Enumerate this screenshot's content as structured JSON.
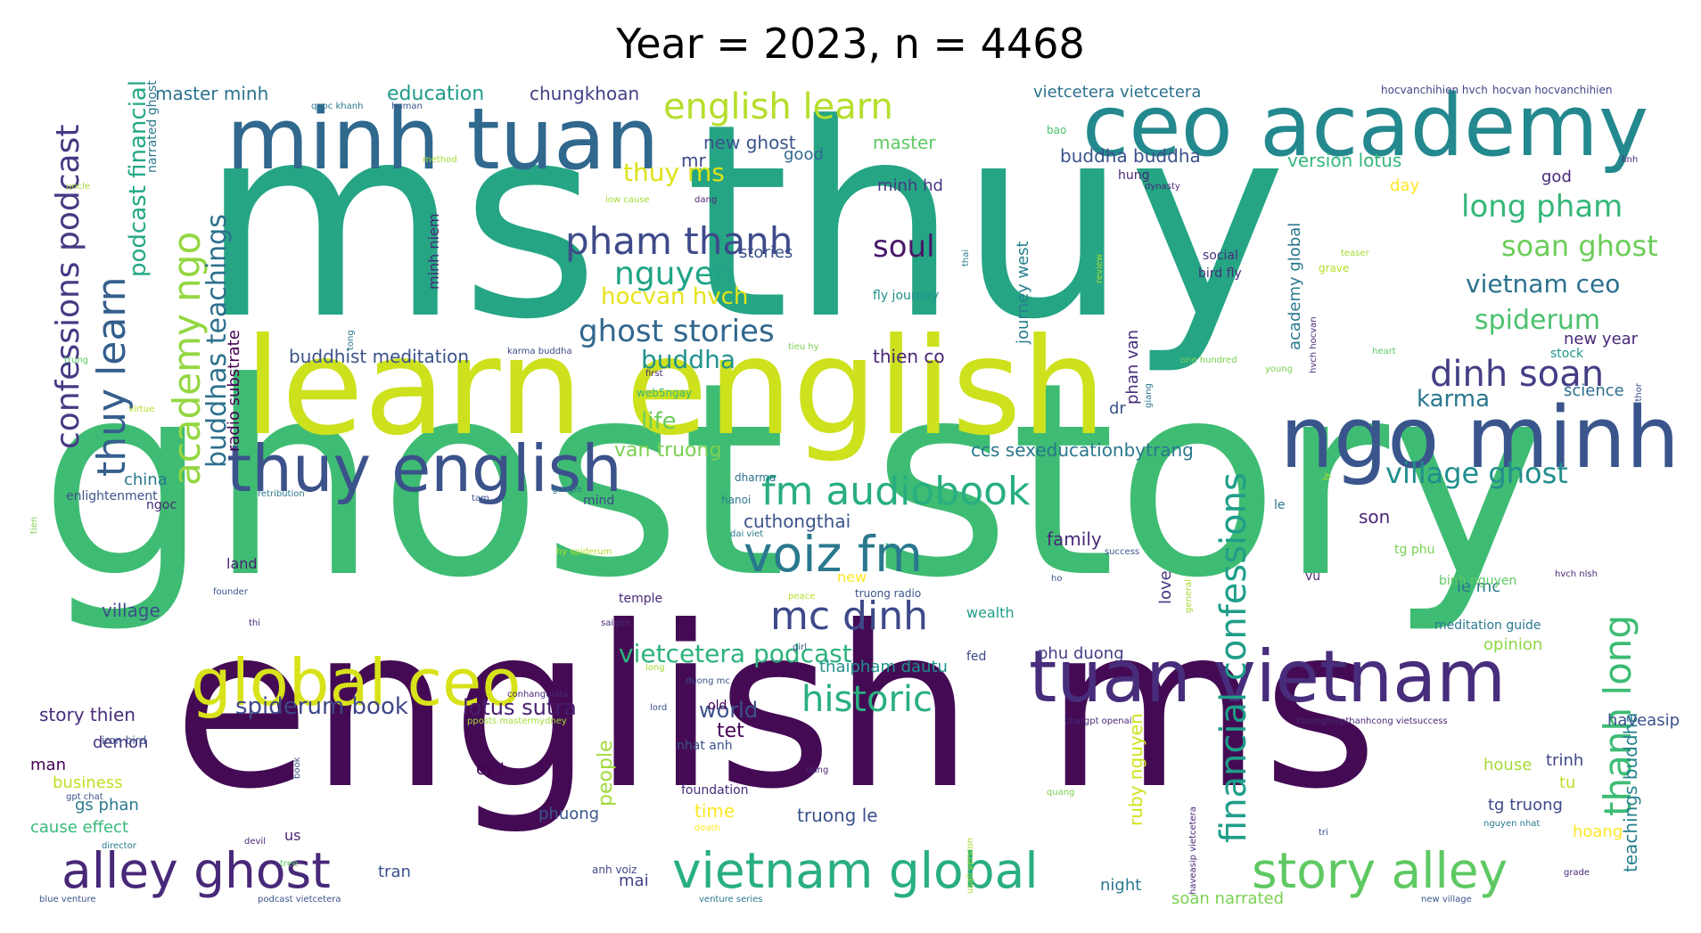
{
  "title": "Year = 2023, n = 4468",
  "words": [
    {
      "text": "ms thuy",
      "size": 300,
      "color": "#25a584"
    },
    {
      "text": "ghost story",
      "size": 300,
      "color": "#3fbc73"
    },
    {
      "text": "english ms",
      "size": 250,
      "color": "#440b54"
    },
    {
      "text": "learn english",
      "size": 150,
      "color": "#cde11d"
    },
    {
      "text": "ceo academy",
      "size": 95,
      "color": "#23898e"
    },
    {
      "text": "minh tuan",
      "size": 95,
      "color": "#30688e"
    },
    {
      "text": "ngo minh",
      "size": 95,
      "color": "#39558c"
    },
    {
      "text": "tuan vietnam",
      "size": 80,
      "color": "#472d7b"
    },
    {
      "text": "thuy english",
      "size": 72,
      "color": "#3b528b"
    },
    {
      "text": "global ceo",
      "size": 72,
      "color": "#d8e219"
    },
    {
      "text": "alley ghost",
      "size": 55,
      "color": "#482878"
    },
    {
      "text": "vietnam global",
      "size": 55,
      "color": "#29af7f"
    },
    {
      "text": "story alley",
      "size": 55,
      "color": "#5ec962"
    },
    {
      "text": "voiz fm",
      "size": 55,
      "color": "#2a788e"
    },
    {
      "text": "mc dinh",
      "size": 44,
      "color": "#3e4989"
    },
    {
      "text": "fm audiobook",
      "size": 44,
      "color": "#28ae80"
    },
    {
      "text": "english learn",
      "size": 40,
      "color": "#b5de2b"
    },
    {
      "text": "pham thanh",
      "size": 42,
      "color": "#3e4a89"
    },
    {
      "text": "historic",
      "size": 40,
      "color": "#2ab07f"
    },
    {
      "text": "dinh soan",
      "size": 40,
      "color": "#433e85"
    },
    {
      "text": "thuy learn",
      "size": 44,
      "color": "#355f8d"
    },
    {
      "text": "academy ngo",
      "size": 42,
      "color": "#93d741"
    },
    {
      "text": "financial confessions",
      "size": 40,
      "color": "#1f9e89"
    },
    {
      "text": "thanh long",
      "size": 42,
      "color": "#3dbc74"
    },
    {
      "text": "confessions podcast",
      "size": 36,
      "color": "#443a83"
    },
    {
      "text": "nguyen",
      "size": 36,
      "color": "#20a386"
    },
    {
      "text": "ghost stories",
      "size": 34,
      "color": "#31678e"
    },
    {
      "text": "soul",
      "size": 34,
      "color": "#481769"
    },
    {
      "text": "long pham",
      "size": 34,
      "color": "#35b779"
    },
    {
      "text": "soan ghost",
      "size": 32,
      "color": "#6ccd5a"
    },
    {
      "text": "village ghost",
      "size": 32,
      "color": "#228d8d"
    },
    {
      "text": "vietnam ceo",
      "size": 28,
      "color": "#2c718e"
    },
    {
      "text": "spiderum",
      "size": 30,
      "color": "#4ac16d"
    },
    {
      "text": "buddhas teachings",
      "size": 30,
      "color": "#2d708e"
    },
    {
      "text": "podcast financial",
      "size": 26,
      "color": "#22a884"
    },
    {
      "text": "vietcetera podcast",
      "size": 28,
      "color": "#2db27d"
    },
    {
      "text": "spiderum book",
      "size": 26,
      "color": "#3f4788"
    },
    {
      "text": "buddha",
      "size": 28,
      "color": "#20928c"
    },
    {
      "text": "karma",
      "size": 26,
      "color": "#2a778e"
    },
    {
      "text": "life",
      "size": 26,
      "color": "#6ccd5a"
    },
    {
      "text": "hocvan hvch",
      "size": 26,
      "color": "#e5e419"
    },
    {
      "text": "thuy ms",
      "size": 28,
      "color": "#dde318"
    },
    {
      "text": "ruby nguyen",
      "size": 20,
      "color": "#d0e11c"
    },
    {
      "text": "teachings buddha",
      "size": 20,
      "color": "#26828e"
    },
    {
      "text": "tet",
      "size": 22,
      "color": "#440154"
    },
    {
      "text": "world",
      "size": 24,
      "color": "#3b528b"
    },
    {
      "text": "lotus sutra",
      "size": 24,
      "color": "#481c6e"
    },
    {
      "text": "people",
      "size": 22,
      "color": "#9fda3a"
    },
    {
      "text": "story thien",
      "size": 20,
      "color": "#472c7a"
    },
    {
      "text": "education",
      "size": 22,
      "color": "#1e9b8a"
    },
    {
      "text": "master minh",
      "size": 20,
      "color": "#2c728e"
    },
    {
      "text": "chungkhoan",
      "size": 20,
      "color": "#424086"
    },
    {
      "text": "new ghost",
      "size": 20,
      "color": "#3b528b"
    },
    {
      "text": "master",
      "size": 20,
      "color": "#5ec962"
    },
    {
      "text": "good",
      "size": 18,
      "color": "#31688e"
    },
    {
      "text": "mr",
      "size": 20,
      "color": "#3e4989"
    },
    {
      "text": "version lotus",
      "size": 20,
      "color": "#35b779"
    },
    {
      "text": "buddha buddha",
      "size": 20,
      "color": "#3b528b"
    },
    {
      "text": "vietcetera vietcetera",
      "size": 18,
      "color": "#2c718e"
    },
    {
      "text": "stories",
      "size": 18,
      "color": "#3b528b"
    },
    {
      "text": "minh hd",
      "size": 18,
      "color": "#443983"
    },
    {
      "text": "day",
      "size": 18,
      "color": "#fde725"
    },
    {
      "text": "god",
      "size": 18,
      "color": "#482878"
    },
    {
      "text": "thien co",
      "size": 20,
      "color": "#482576"
    },
    {
      "text": "buddhist meditation",
      "size": 20,
      "color": "#3b528b"
    },
    {
      "text": "radio substrate",
      "size": 18,
      "color": "#440154"
    },
    {
      "text": "journey west",
      "size": 18,
      "color": "#27808e"
    },
    {
      "text": "phan van",
      "size": 18,
      "color": "#472d7b"
    },
    {
      "text": "academy global",
      "size": 18,
      "color": "#29798e"
    },
    {
      "text": "van truong",
      "size": 22,
      "color": "#7ad151"
    },
    {
      "text": "ccs sexeducationbytrang",
      "size": 20,
      "color": "#2a788e"
    },
    {
      "text": "cuthongthai",
      "size": 20,
      "color": "#3b528b"
    },
    {
      "text": "china",
      "size": 18,
      "color": "#2a788e"
    },
    {
      "text": "family",
      "size": 20,
      "color": "#482878"
    },
    {
      "text": "son",
      "size": 20,
      "color": "#482576"
    },
    {
      "text": "le mc",
      "size": 18,
      "color": "#2a788e"
    },
    {
      "text": "opinion",
      "size": 18,
      "color": "#8fd744"
    },
    {
      "text": "science",
      "size": 18,
      "color": "#2e6e8e"
    },
    {
      "text": "new year",
      "size": 18,
      "color": "#482878"
    },
    {
      "text": "stock",
      "size": 14,
      "color": "#1f968b"
    },
    {
      "text": "village",
      "size": 20,
      "color": "#3b528b"
    },
    {
      "text": "land",
      "size": 16,
      "color": "#481f70"
    },
    {
      "text": "thaipham dautu",
      "size": 18,
      "color": "#21918c"
    },
    {
      "text": "phu duong",
      "size": 18,
      "color": "#433e85"
    },
    {
      "text": "wealth",
      "size": 16,
      "color": "#1f9e89"
    },
    {
      "text": "love",
      "size": 18,
      "color": "#46337f"
    },
    {
      "text": "demon",
      "size": 18,
      "color": "#46327e"
    },
    {
      "text": "man",
      "size": 18,
      "color": "#440154"
    },
    {
      "text": "business",
      "size": 18,
      "color": "#c2df23"
    },
    {
      "text": "gs phan",
      "size": 18,
      "color": "#2a788e"
    },
    {
      "text": "cause effect",
      "size": 18,
      "color": "#38b977"
    },
    {
      "text": "us",
      "size": 16,
      "color": "#482475"
    },
    {
      "text": "tran",
      "size": 18,
      "color": "#3b528b"
    },
    {
      "text": "mai",
      "size": 18,
      "color": "#414487"
    },
    {
      "text": "phuong",
      "size": 18,
      "color": "#39568c"
    },
    {
      "text": "time",
      "size": 20,
      "color": "#fde725"
    },
    {
      "text": "truong le",
      "size": 20,
      "color": "#3b528b"
    },
    {
      "text": "foundation",
      "size": 14,
      "color": "#472c7a"
    },
    {
      "text": "night",
      "size": 18,
      "color": "#2a788e"
    },
    {
      "text": "soan narrated",
      "size": 18,
      "color": "#7ad151"
    },
    {
      "text": "haveasip",
      "size": 18,
      "color": "#3b528b"
    },
    {
      "text": "house",
      "size": 18,
      "color": "#a5db36"
    },
    {
      "text": "trinh",
      "size": 18,
      "color": "#404688"
    },
    {
      "text": "tu",
      "size": 18,
      "color": "#bddf26"
    },
    {
      "text": "tg truong",
      "size": 18,
      "color": "#3e4989"
    },
    {
      "text": "hoang",
      "size": 18,
      "color": "#fde725"
    },
    {
      "text": "meditation guide",
      "size": 14,
      "color": "#2a788e"
    },
    {
      "text": "binh nguyen",
      "size": 14,
      "color": "#5ec962"
    },
    {
      "text": "tg phu",
      "size": 14,
      "color": "#7ad151"
    },
    {
      "text": "vu",
      "size": 14,
      "color": "#482878"
    },
    {
      "text": "le",
      "size": 14,
      "color": "#2a788e"
    },
    {
      "text": "dr",
      "size": 18,
      "color": "#3b528b"
    },
    {
      "text": "hung",
      "size": 14,
      "color": "#482878"
    },
    {
      "text": "social",
      "size": 14,
      "color": "#472d7b"
    },
    {
      "text": "bird fly",
      "size": 14,
      "color": "#472d7b"
    },
    {
      "text": "fly journey",
      "size": 14,
      "color": "#21918c"
    },
    {
      "text": "minh niem",
      "size": 16,
      "color": "#482878"
    },
    {
      "text": "narrated ghost",
      "size": 14,
      "color": "#2a788e"
    },
    {
      "text": "bao",
      "size": 12,
      "color": "#4ac16d"
    },
    {
      "text": "mind",
      "size": 14,
      "color": "#3e4989"
    },
    {
      "text": "hanoi",
      "size": 12,
      "color": "#2a788e"
    },
    {
      "text": "dharma",
      "size": 12,
      "color": "#2e6e8e"
    },
    {
      "text": "enlightenment",
      "size": 14,
      "color": "#3b528b"
    },
    {
      "text": "ngoc",
      "size": 14,
      "color": "#482878"
    },
    {
      "text": "temple",
      "size": 14,
      "color": "#482878"
    },
    {
      "text": "evil",
      "size": 18,
      "color": "#440154"
    },
    {
      "text": "old",
      "size": 14,
      "color": "#440154"
    },
    {
      "text": "fed",
      "size": 14,
      "color": "#3e4989"
    },
    {
      "text": "new",
      "size": 16,
      "color": "#fde725"
    },
    {
      "text": "truong radio",
      "size": 12,
      "color": "#3b528b"
    },
    {
      "text": "web5ngay",
      "size": 12,
      "color": "#35b779"
    },
    {
      "text": "nhat anh",
      "size": 14,
      "color": "#3b528b"
    },
    {
      "text": "anh voiz",
      "size": 12,
      "color": "#3e4989"
    },
    {
      "text": "hocvanchihien hvch",
      "size": 12,
      "color": "#404688"
    },
    {
      "text": "hocvan hocvanchihien",
      "size": 12,
      "color": "#404688"
    },
    {
      "text": "quoc khanh",
      "size": 10,
      "color": "#2a788e"
    },
    {
      "text": "human",
      "size": 10,
      "color": "#3b528b"
    },
    {
      "text": "method",
      "size": 10,
      "color": "#a5db36"
    },
    {
      "text": "uncle",
      "size": 10,
      "color": "#a5db36"
    },
    {
      "text": "dang",
      "size": 10,
      "color": "#482878"
    },
    {
      "text": "dynasty",
      "size": 10,
      "color": "#482878"
    },
    {
      "text": "linh",
      "size": 10,
      "color": "#482878"
    },
    {
      "text": "grave",
      "size": 12,
      "color": "#b5de2b"
    },
    {
      "text": "author",
      "size": 10,
      "color": "#3b528b"
    },
    {
      "text": "heart",
      "size": 10,
      "color": "#5ec962"
    },
    {
      "text": "young",
      "size": 10,
      "color": "#7ad151"
    },
    {
      "text": "giang",
      "size": 10,
      "color": "#2a788e"
    },
    {
      "text": "karma buddha",
      "size": 10,
      "color": "#3e4989"
    },
    {
      "text": "tieu hy",
      "size": 10,
      "color": "#7ad151"
    },
    {
      "text": "first",
      "size": 10,
      "color": "#482878"
    },
    {
      "text": "virtue",
      "size": 10,
      "color": "#b5de2b"
    },
    {
      "text": "trung",
      "size": 10,
      "color": "#5ec962"
    },
    {
      "text": "tien",
      "size": 10,
      "color": "#7ad151"
    },
    {
      "text": "google",
      "size": 10,
      "color": "#2a788e"
    },
    {
      "text": "retribution",
      "size": 10,
      "color": "#2a788e"
    },
    {
      "text": "tam",
      "size": 10,
      "color": "#3b528b"
    },
    {
      "text": "dai viet",
      "size": 10,
      "color": "#2a788e"
    },
    {
      "text": "hy spiderum",
      "size": 10,
      "color": "#b5de2b"
    },
    {
      "text": "founder",
      "size": 10,
      "color": "#3b528b"
    },
    {
      "text": "thi",
      "size": 10,
      "color": "#482878"
    },
    {
      "text": "saigon",
      "size": 10,
      "color": "#482878"
    },
    {
      "text": "peace",
      "size": 10,
      "color": "#b5de2b"
    },
    {
      "text": "girl",
      "size": 10,
      "color": "#3b528b"
    },
    {
      "text": "success",
      "size": 10,
      "color": "#3b528b"
    },
    {
      "text": "ho",
      "size": 10,
      "color": "#3b528b"
    },
    {
      "text": "general",
      "size": 10,
      "color": "#a5db36"
    },
    {
      "text": "ly",
      "size": 10,
      "color": "#b5de2b"
    },
    {
      "text": "hvch nlsh",
      "size": 10,
      "color": "#482878"
    },
    {
      "text": "low cause",
      "size": 10,
      "color": "#a5db36"
    },
    {
      "text": "review",
      "size": 10,
      "color": "#a5db36"
    },
    {
      "text": "teaser",
      "size": 10,
      "color": "#a5db36"
    },
    {
      "text": "hvch hocvan",
      "size": 10,
      "color": "#482878"
    },
    {
      "text": "one hundred",
      "size": 10,
      "color": "#7ad151"
    },
    {
      "text": "thai",
      "size": 10,
      "color": "#2a788e"
    },
    {
      "text": "tong",
      "size": 10,
      "color": "#2a788e"
    },
    {
      "text": "conhanguoita",
      "size": 10,
      "color": "#482878"
    },
    {
      "text": "duong mc",
      "size": 10,
      "color": "#3b528b"
    },
    {
      "text": "lord",
      "size": 10,
      "color": "#3b528b"
    },
    {
      "text": "long",
      "size": 10,
      "color": "#a5db36"
    },
    {
      "text": "chatgpt openai",
      "size": 10,
      "color": "#482878"
    },
    {
      "text": "khoinghiepthanhcong vietsuccess",
      "size": 10,
      "color": "#482878"
    },
    {
      "text": "haveasip vietcetera",
      "size": 10,
      "color": "#482878"
    },
    {
      "text": "iron bird",
      "size": 12,
      "color": "#3b528b"
    },
    {
      "text": "gpt chat",
      "size": 10,
      "color": "#3b528b"
    },
    {
      "text": "pposts mastermydney",
      "size": 10,
      "color": "#a5db36"
    },
    {
      "text": "book",
      "size": 10,
      "color": "#3b528b"
    },
    {
      "text": "devil",
      "size": 10,
      "color": "#482878"
    },
    {
      "text": "tree",
      "size": 10,
      "color": "#5ec962"
    },
    {
      "text": "dung",
      "size": 10,
      "color": "#482878"
    },
    {
      "text": "usali version",
      "size": 10,
      "color": "#a5db36"
    },
    {
      "text": "quang",
      "size": 10,
      "color": "#7ad151"
    },
    {
      "text": "tri",
      "size": 10,
      "color": "#3b528b"
    },
    {
      "text": "death",
      "size": 10,
      "color": "#fde725"
    },
    {
      "text": "director",
      "size": 10,
      "color": "#2a788e"
    },
    {
      "text": "nguyen nhat",
      "size": 10,
      "color": "#2a788e"
    },
    {
      "text": "grade",
      "size": 10,
      "color": "#482878"
    },
    {
      "text": "blue venture",
      "size": 10,
      "color": "#3b528b"
    },
    {
      "text": "podcast vietcetera",
      "size": 10,
      "color": "#3b528b"
    },
    {
      "text": "venture series",
      "size": 10,
      "color": "#2a788e"
    },
    {
      "text": "new village",
      "size": 10,
      "color": "#3b528b"
    }
  ]
}
